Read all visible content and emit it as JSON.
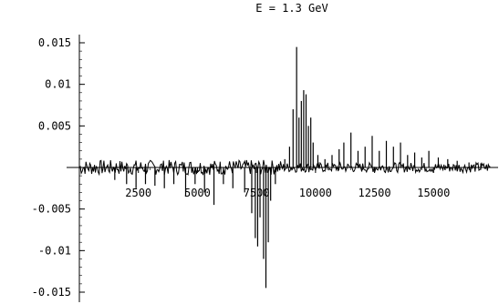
{
  "chart_data": {
    "type": "line",
    "title": "E = 1.3 GeV",
    "xlabel": "",
    "ylabel": "",
    "xlim": [
      0,
      17500
    ],
    "ylim": [
      -0.015,
      0.016
    ],
    "grid": false,
    "x_ticks": [
      {
        "value": 2500,
        "label": "2500"
      },
      {
        "value": 5000,
        "label": "5000"
      },
      {
        "value": 7500,
        "label": "7500"
      },
      {
        "value": 10000,
        "label": "10000"
      },
      {
        "value": 12500,
        "label": "12500"
      },
      {
        "value": 15000,
        "label": "15000"
      }
    ],
    "y_ticks": [
      {
        "value": 0.015,
        "label": "0.015"
      },
      {
        "value": 0.01,
        "label": "0.01"
      },
      {
        "value": 0.005,
        "label": "0.005"
      },
      {
        "value": -0.005,
        "label": "-0.005"
      },
      {
        "value": -0.01,
        "label": "-0.01"
      },
      {
        "value": -0.015,
        "label": "-0.015"
      }
    ],
    "series": [
      {
        "color": "#000000",
        "spikes": [
          {
            "x": 1500,
            "y": -0.0015
          },
          {
            "x": 2000,
            "y": -0.002
          },
          {
            "x": 2400,
            "y": -0.0025
          },
          {
            "x": 2800,
            "y": -0.002
          },
          {
            "x": 3200,
            "y": -0.0022
          },
          {
            "x": 3600,
            "y": -0.0025
          },
          {
            "x": 4000,
            "y": -0.002
          },
          {
            "x": 4500,
            "y": -0.0035
          },
          {
            "x": 4900,
            "y": -0.002
          },
          {
            "x": 5300,
            "y": -0.003
          },
          {
            "x": 5700,
            "y": -0.0045
          },
          {
            "x": 6100,
            "y": -0.002
          },
          {
            "x": 6500,
            "y": -0.0025
          },
          {
            "x": 7000,
            "y": -0.003
          },
          {
            "x": 7300,
            "y": -0.0055
          },
          {
            "x": 7450,
            "y": -0.0085
          },
          {
            "x": 7550,
            "y": -0.0095
          },
          {
            "x": 7650,
            "y": -0.006
          },
          {
            "x": 7800,
            "y": -0.011
          },
          {
            "x": 7900,
            "y": -0.0145
          },
          {
            "x": 8000,
            "y": -0.009
          },
          {
            "x": 8100,
            "y": -0.004
          },
          {
            "x": 8300,
            "y": -0.002
          },
          {
            "x": 8700,
            "y": 0.001
          },
          {
            "x": 8900,
            "y": 0.0025
          },
          {
            "x": 9050,
            "y": 0.007
          },
          {
            "x": 9200,
            "y": 0.0145
          },
          {
            "x": 9300,
            "y": 0.006
          },
          {
            "x": 9400,
            "y": 0.008
          },
          {
            "x": 9500,
            "y": 0.0093
          },
          {
            "x": 9600,
            "y": 0.0088
          },
          {
            "x": 9700,
            "y": 0.005
          },
          {
            "x": 9800,
            "y": 0.006
          },
          {
            "x": 9900,
            "y": 0.003
          },
          {
            "x": 10100,
            "y": 0.0015
          },
          {
            "x": 10400,
            "y": 0.001
          },
          {
            "x": 10700,
            "y": 0.0015
          },
          {
            "x": 11000,
            "y": 0.0022
          },
          {
            "x": 11200,
            "y": 0.003
          },
          {
            "x": 11500,
            "y": 0.0042
          },
          {
            "x": 11800,
            "y": 0.002
          },
          {
            "x": 12100,
            "y": 0.0025
          },
          {
            "x": 12400,
            "y": 0.0038
          },
          {
            "x": 12700,
            "y": 0.002
          },
          {
            "x": 13000,
            "y": 0.0032
          },
          {
            "x": 13300,
            "y": 0.0025
          },
          {
            "x": 13600,
            "y": 0.003
          },
          {
            "x": 13900,
            "y": 0.0015
          },
          {
            "x": 14200,
            "y": 0.0018
          },
          {
            "x": 14500,
            "y": 0.0012
          },
          {
            "x": 14800,
            "y": 0.002
          },
          {
            "x": 15200,
            "y": 0.0012
          },
          {
            "x": 15600,
            "y": 0.001
          },
          {
            "x": 16000,
            "y": 0.0008
          },
          {
            "x": 16500,
            "y": 0.0006
          },
          {
            "x": 17000,
            "y": 0.0005
          }
        ]
      }
    ]
  }
}
